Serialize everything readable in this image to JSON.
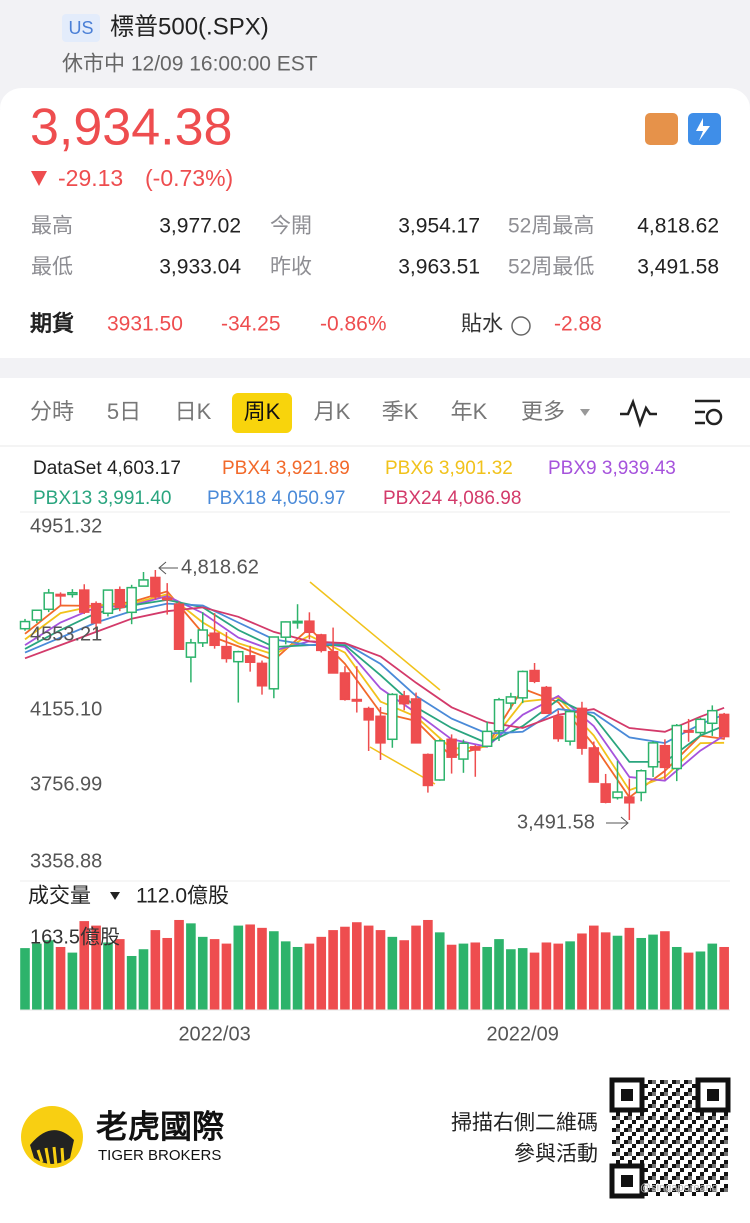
{
  "header": {
    "market": "US",
    "title": "標普500(.SPX)",
    "status": "休市中 12/09 16:00:00 EST"
  },
  "quote": {
    "price": "3,934.38",
    "change": "-29.13",
    "change_pct": "(-0.73%)"
  },
  "stats": [
    {
      "label": "最高",
      "value": "3,977.02"
    },
    {
      "label": "今開",
      "value": "3,954.17"
    },
    {
      "label": "52周最高",
      "value": "4,818.62"
    },
    {
      "label": "最低",
      "value": "3,933.04"
    },
    {
      "label": "昨收",
      "value": "3,963.51"
    },
    {
      "label": "52周最低",
      "value": "3,491.58"
    }
  ],
  "futures": {
    "label": "期貨",
    "price": "3931.50",
    "change": "-34.25",
    "change_pct": "-0.86%",
    "basis_label": "貼水",
    "basis": "-2.88"
  },
  "tabs": [
    "分時",
    "5日",
    "日K",
    "周K",
    "月K",
    "季K",
    "年K",
    "更多"
  ],
  "active_tab": 3,
  "chart_data": {
    "type": "candlestick",
    "dataset": {
      "name": "DataSet",
      "reading": "4,603.17"
    },
    "x": [
      null,
      null,
      null,
      null,
      null,
      null,
      null,
      null,
      null,
      null,
      null,
      null,
      null,
      null,
      null,
      null,
      "2022/03",
      null,
      null,
      null,
      null,
      null,
      null,
      null,
      null,
      null,
      null,
      null,
      null,
      null,
      null,
      null,
      null,
      null,
      null,
      null,
      null,
      null,
      null,
      null,
      null,
      null,
      "2022/09",
      null,
      null,
      null,
      null,
      null,
      null,
      null,
      null,
      null,
      null,
      null,
      null,
      null,
      null,
      null,
      null,
      null
    ],
    "open": [
      4507,
      4553,
      4610,
      4689,
      4689,
      4712,
      4640,
      4589,
      4714,
      4594,
      4733,
      4779,
      4669,
      4637,
      4356,
      4432,
      4483,
      4412,
      4332,
      4363,
      4323,
      4188,
      4462,
      4541,
      4547,
      4474,
      4385,
      4272,
      4131,
      4083,
      4042,
      3920,
      4150,
      4134,
      3839,
      3704,
      3920,
      3815,
      3880,
      3883,
      3965,
      4112,
      4140,
      4285,
      4195,
      4041,
      3910,
      4084,
      3874,
      3683,
      3610,
      3613,
      3638,
      3774,
      3886,
      3765,
      3966,
      3956,
      4005,
      4052
    ],
    "high": [
      4559,
      4608,
      4718,
      4700,
      4717,
      4743,
      4652,
      4713,
      4731,
      4740,
      4808,
      4818.62,
      4749,
      4650,
      4453,
      4595,
      4590,
      4489,
      4390,
      4416,
      4338,
      4465,
      4546,
      4637,
      4594,
      4480,
      4513,
      4308,
      4308,
      4093,
      4091,
      4165,
      4177,
      4168,
      3845,
      3920,
      3946,
      3918,
      3890,
      4013,
      4140,
      4167,
      4285,
      4325,
      4203,
      4073,
      4076,
      4119,
      3908,
      3736,
      3806,
      3712,
      3760,
      3910,
      3920,
      4001,
      4028,
      4034,
      4100,
      4060
    ],
    "low": [
      4496,
      4537,
      4595,
      4630,
      4672,
      4585,
      4495,
      4572,
      4600,
      4531,
      4733,
      4662,
      4582,
      4395,
      4222,
      4410,
      4401,
      4327,
      4115,
      4279,
      4157,
      4138,
      4424,
      4507,
      4450,
      4381,
      4270,
      4125,
      4062,
      3858,
      3810,
      3875,
      4074,
      3900,
      3637,
      3700,
      3738,
      3742,
      3721,
      3880,
      3911,
      4079,
      4112,
      4218,
      4055,
      3907,
      3887,
      3838,
      3690,
      3580,
      3600,
      3491.58,
      3591,
      3720,
      3706,
      3698,
      3907,
      3940,
      3938,
      3918
    ],
    "close": [
      4545,
      4605,
      4697,
      4683,
      4698,
      4595,
      4538,
      4712,
      4620,
      4725,
      4766,
      4677,
      4662,
      4398,
      4432,
      4500,
      4419,
      4349,
      4385,
      4329,
      4204,
      4463,
      4543,
      4546,
      4488,
      4392,
      4272,
      4132,
      4123,
      4023,
      3901,
      4158,
      4109,
      3901,
      3675,
      3912,
      3825,
      3899,
      3863,
      3962,
      4130,
      4145,
      4280,
      4228,
      4058,
      3924,
      4067,
      3873,
      3693,
      3586,
      3640,
      3583,
      3753,
      3901,
      3771,
      3993,
      3965,
      4026,
      4072,
      3934.38
    ],
    "up_color": "#2db36b",
    "down_color": "#ee4d4f",
    "ylim": [
      3358.88,
      4951.32
    ],
    "yticks": [
      {
        "value": 4951.32,
        "label": "4951.32"
      },
      {
        "value": 4553.21,
        "label": "4553.21"
      },
      {
        "value": 4155.1,
        "label": "4155.10"
      },
      {
        "value": 3756.99,
        "label": "3756.99"
      },
      {
        "value": 3358.88,
        "label": "3358.88"
      }
    ],
    "annotations": {
      "high": "4,818.62",
      "low": "3,491.58"
    },
    "lines": {
      "x": [
        0,
        3,
        6,
        9,
        12,
        15,
        18,
        21,
        24,
        27,
        30,
        33,
        36,
        39,
        42,
        45,
        48,
        51,
        54,
        57,
        59
      ],
      "series": [
        {
          "name": "PBX4",
          "reading": "3,921.89",
          "color": "#f2692a",
          "values": [
            4480,
            4630,
            4628,
            4649,
            4705,
            4483,
            4413,
            4340,
            4510,
            4321,
            4062,
            4017,
            3828,
            3887,
            4189,
            4117,
            3889,
            3612,
            3752,
            3939,
            3921.89
          ]
        },
        {
          "name": "PBX6",
          "reading": "3,901.32",
          "color": "#f1c21b",
          "values": [
            4450,
            4590,
            4630,
            4640,
            4690,
            4540,
            4430,
            4370,
            4470,
            4380,
            4120,
            4040,
            3870,
            3880,
            4120,
            4140,
            3940,
            3650,
            3720,
            3900,
            3901.32
          ]
        },
        {
          "name": "PBX9",
          "reading": "3,939.43",
          "color": "#a653dc",
          "values": [
            4420,
            4540,
            4620,
            4630,
            4680,
            4590,
            4460,
            4390,
            4440,
            4410,
            4190,
            4060,
            3920,
            3880,
            4050,
            4150,
            3990,
            3720,
            3700,
            3860,
            3939.43
          ]
        },
        {
          "name": "PBX13",
          "reading": "3,991.40",
          "color": "#2aa57f",
          "values": [
            4400,
            4500,
            4590,
            4630,
            4660,
            4620,
            4500,
            4410,
            4420,
            4420,
            4260,
            4090,
            3980,
            3900,
            3990,
            4130,
            4040,
            3800,
            3800,
            3940,
            3991.4
          ]
        },
        {
          "name": "PBX18",
          "reading": "4,050.97",
          "color": "#4a8ad8",
          "values": [
            4380,
            4460,
            4540,
            4600,
            4640,
            4630,
            4540,
            4450,
            4420,
            4430,
            4320,
            4150,
            4030,
            3950,
            3960,
            4080,
            4060,
            3930,
            3900,
            4000,
            4050.97
          ]
        },
        {
          "name": "PBX24",
          "reading": "4,086.98",
          "color": "#d33a6a",
          "values": [
            4350,
            4420,
            4490,
            4560,
            4600,
            4620,
            4570,
            4490,
            4440,
            4430,
            4360,
            4220,
            4090,
            4010,
            3980,
            4050,
            4080,
            3980,
            3960,
            4040,
            4086.98
          ]
        }
      ]
    },
    "volume": {
      "label": "成交量",
      "reading": "112.0億股",
      "values": [
        110,
        118,
        124,
        112,
        102,
        158,
        150,
        120,
        126,
        96,
        108,
        142,
        128,
        160,
        154,
        130,
        126,
        118,
        150,
        152,
        146,
        140,
        122,
        112,
        118,
        130,
        142,
        148,
        156,
        150,
        142,
        130,
        124,
        150,
        160,
        138,
        116,
        118,
        120,
        112,
        126,
        108,
        110,
        102,
        120,
        118,
        122,
        136,
        150,
        138,
        132,
        146,
        128,
        134,
        140,
        112,
        102,
        104,
        118,
        112.0
      ],
      "ylim": [
        0,
        163.5
      ],
      "yticks": [
        {
          "value": 163.5,
          "label": "163.5億股"
        }
      ]
    }
  },
  "footer": {
    "brand": "老虎國際",
    "brand_en": "TIGER BROKERS",
    "cta_line1": "掃描右側二維碼",
    "cta_line2": "參與活動",
    "watermark": "@singaporeanq"
  }
}
